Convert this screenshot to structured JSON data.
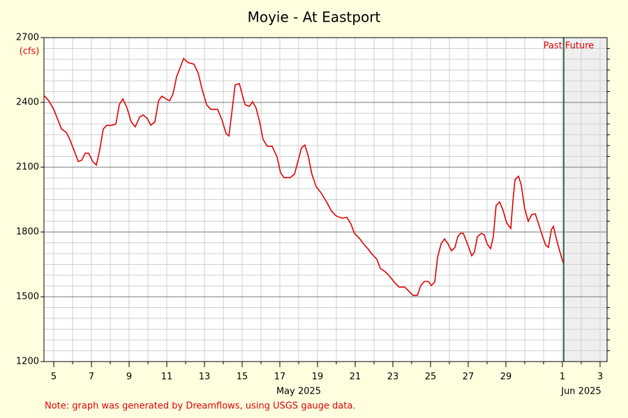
{
  "chart_data": {
    "type": "line",
    "title": "Moyie - At Eastport",
    "y_unit": "(cfs)",
    "x_month_labels": [
      {
        "value": 18,
        "label": "May 2025"
      },
      {
        "value": 33,
        "label": "Jun 2025"
      }
    ],
    "past_label": "Past",
    "future_label": "Future",
    "now": 32.07,
    "note": "Note: graph was generated by Dreamflows, using USGS gauge data.",
    "xlim": [
      4.48,
      34.37
    ],
    "ylim": [
      1200,
      2700
    ],
    "xticks": [
      5,
      7,
      9,
      11,
      13,
      15,
      17,
      19,
      21,
      23,
      25,
      27,
      29,
      {
        "value": 32,
        "label": "1"
      },
      {
        "value": 34,
        "label": "3"
      }
    ],
    "minor_xticks": [
      5,
      6,
      7,
      8,
      9,
      10,
      11,
      12,
      13,
      14,
      15,
      16,
      17,
      18,
      19,
      20,
      21,
      22,
      23,
      24,
      25,
      26,
      27,
      28,
      29,
      30,
      31,
      32,
      33,
      34
    ],
    "yticks": [
      1200,
      1500,
      1800,
      2100,
      2400,
      2700
    ],
    "minor_yticks": [
      1250,
      1300,
      1350,
      1400,
      1450,
      1550,
      1600,
      1650,
      1700,
      1750,
      1850,
      1900,
      1950,
      2000,
      2050,
      2150,
      2200,
      2250,
      2300,
      2350,
      2450,
      2500,
      2550,
      2600,
      2650
    ],
    "grid": true,
    "series": [
      {
        "name": "Flow",
        "color": "#e00000",
        "x": [
          4.48,
          4.74,
          5,
          5.22,
          5.41,
          5.67,
          5.85,
          6.07,
          6.3,
          6.48,
          6.67,
          6.85,
          7.07,
          7.26,
          7.44,
          7.63,
          7.81,
          8.07,
          8.3,
          8.48,
          8.67,
          8.89,
          9.11,
          9.33,
          9.56,
          9.74,
          9.96,
          10.15,
          10.37,
          10.56,
          10.74,
          10.96,
          11.15,
          11.33,
          11.52,
          11.7,
          11.89,
          12.15,
          12.44,
          12.67,
          12.89,
          13.11,
          13.33,
          13.7,
          13.93,
          14.15,
          14.3,
          14.48,
          14.63,
          14.85,
          15,
          15.15,
          15.37,
          15.56,
          15.74,
          15.93,
          16.11,
          16.33,
          16.59,
          16.85,
          17.04,
          17.22,
          17.56,
          17.78,
          17.96,
          18.15,
          18.33,
          18.52,
          18.7,
          18.93,
          19.19,
          19.48,
          19.74,
          20,
          20.3,
          20.56,
          20.78,
          20.96,
          21.22,
          21.44,
          21.67,
          21.89,
          22.15,
          22.33,
          22.59,
          22.81,
          23.07,
          23.33,
          23.63,
          23.85,
          24.07,
          24.3,
          24.48,
          24.67,
          24.89,
          25.04,
          25.22,
          25.37,
          25.56,
          25.74,
          25.93,
          26.11,
          26.3,
          26.44,
          26.59,
          26.74,
          26.96,
          27.19,
          27.33,
          27.48,
          27.7,
          27.85,
          28,
          28.19,
          28.33,
          28.48,
          28.67,
          28.85,
          29.04,
          29.26,
          29.37,
          29.48,
          29.67,
          29.81,
          30,
          30.19,
          30.37,
          30.56,
          30.74,
          30.93,
          31.11,
          31.26,
          31.41,
          31.52,
          31.67,
          31.85,
          32.04
        ],
        "values": [
          2432,
          2407,
          2368,
          2319,
          2277,
          2261,
          2229,
          2180,
          2126,
          2132,
          2165,
          2165,
          2126,
          2110,
          2180,
          2277,
          2294,
          2294,
          2300,
          2390,
          2416,
          2374,
          2310,
          2287,
          2332,
          2342,
          2326,
          2294,
          2310,
          2407,
          2429,
          2416,
          2407,
          2439,
          2519,
          2558,
          2603,
          2584,
          2577,
          2535,
          2455,
          2390,
          2368,
          2368,
          2319,
          2255,
          2245,
          2374,
          2481,
          2487,
          2439,
          2390,
          2381,
          2403,
          2374,
          2310,
          2229,
          2197,
          2197,
          2148,
          2074,
          2052,
          2052,
          2068,
          2126,
          2190,
          2203,
          2148,
          2068,
          2010,
          1981,
          1939,
          1897,
          1874,
          1864,
          1868,
          1836,
          1794,
          1771,
          1745,
          1723,
          1697,
          1674,
          1632,
          1616,
          1597,
          1568,
          1545,
          1545,
          1526,
          1506,
          1506,
          1552,
          1571,
          1571,
          1552,
          1568,
          1681,
          1745,
          1768,
          1745,
          1713,
          1729,
          1777,
          1794,
          1794,
          1745,
          1690,
          1706,
          1777,
          1794,
          1787,
          1745,
          1723,
          1777,
          1923,
          1939,
          1900,
          1842,
          1816,
          1939,
          2042,
          2058,
          2019,
          1907,
          1849,
          1881,
          1884,
          1836,
          1784,
          1739,
          1729,
          1810,
          1826,
          1771,
          1713,
          1658
        ]
      }
    ]
  }
}
